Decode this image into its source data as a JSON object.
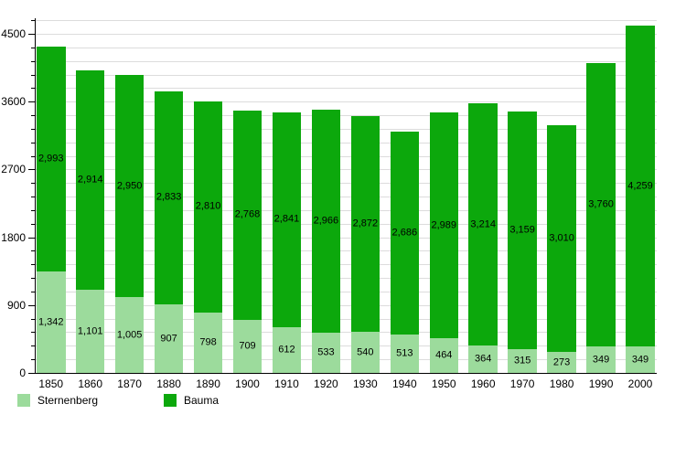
{
  "chart_data": {
    "type": "bar",
    "stacked": true,
    "title": "",
    "xlabel": "",
    "ylabel": "",
    "categories": [
      "1850",
      "1860",
      "1870",
      "1880",
      "1890",
      "1900",
      "1910",
      "1920",
      "1930",
      "1940",
      "1950",
      "1960",
      "1970",
      "1980",
      "1990",
      "2000"
    ],
    "series": [
      {
        "name": "Sternenberg",
        "color": "#9cdb9c",
        "values": [
          1342,
          1101,
          1005,
          907,
          798,
          709,
          612,
          533,
          540,
          513,
          464,
          364,
          315,
          273,
          349,
          349
        ]
      },
      {
        "name": "Bauma",
        "color": "#0cA80c",
        "values": [
          2993,
          2914,
          2950,
          2833,
          2810,
          2768,
          2841,
          2966,
          2872,
          2686,
          2989,
          3214,
          3159,
          3010,
          3760,
          4259
        ]
      }
    ],
    "value_label_format": "thousands-comma",
    "ylim": [
      0,
      4700
    ],
    "yticks": [
      0,
      900,
      1800,
      2700,
      3600,
      4500
    ],
    "minor_grid_step": 180,
    "grid": true,
    "legend_position": "bottom",
    "grid_color": "#dcdcdc",
    "axis_color": "#000000",
    "text_color": "#000000"
  }
}
